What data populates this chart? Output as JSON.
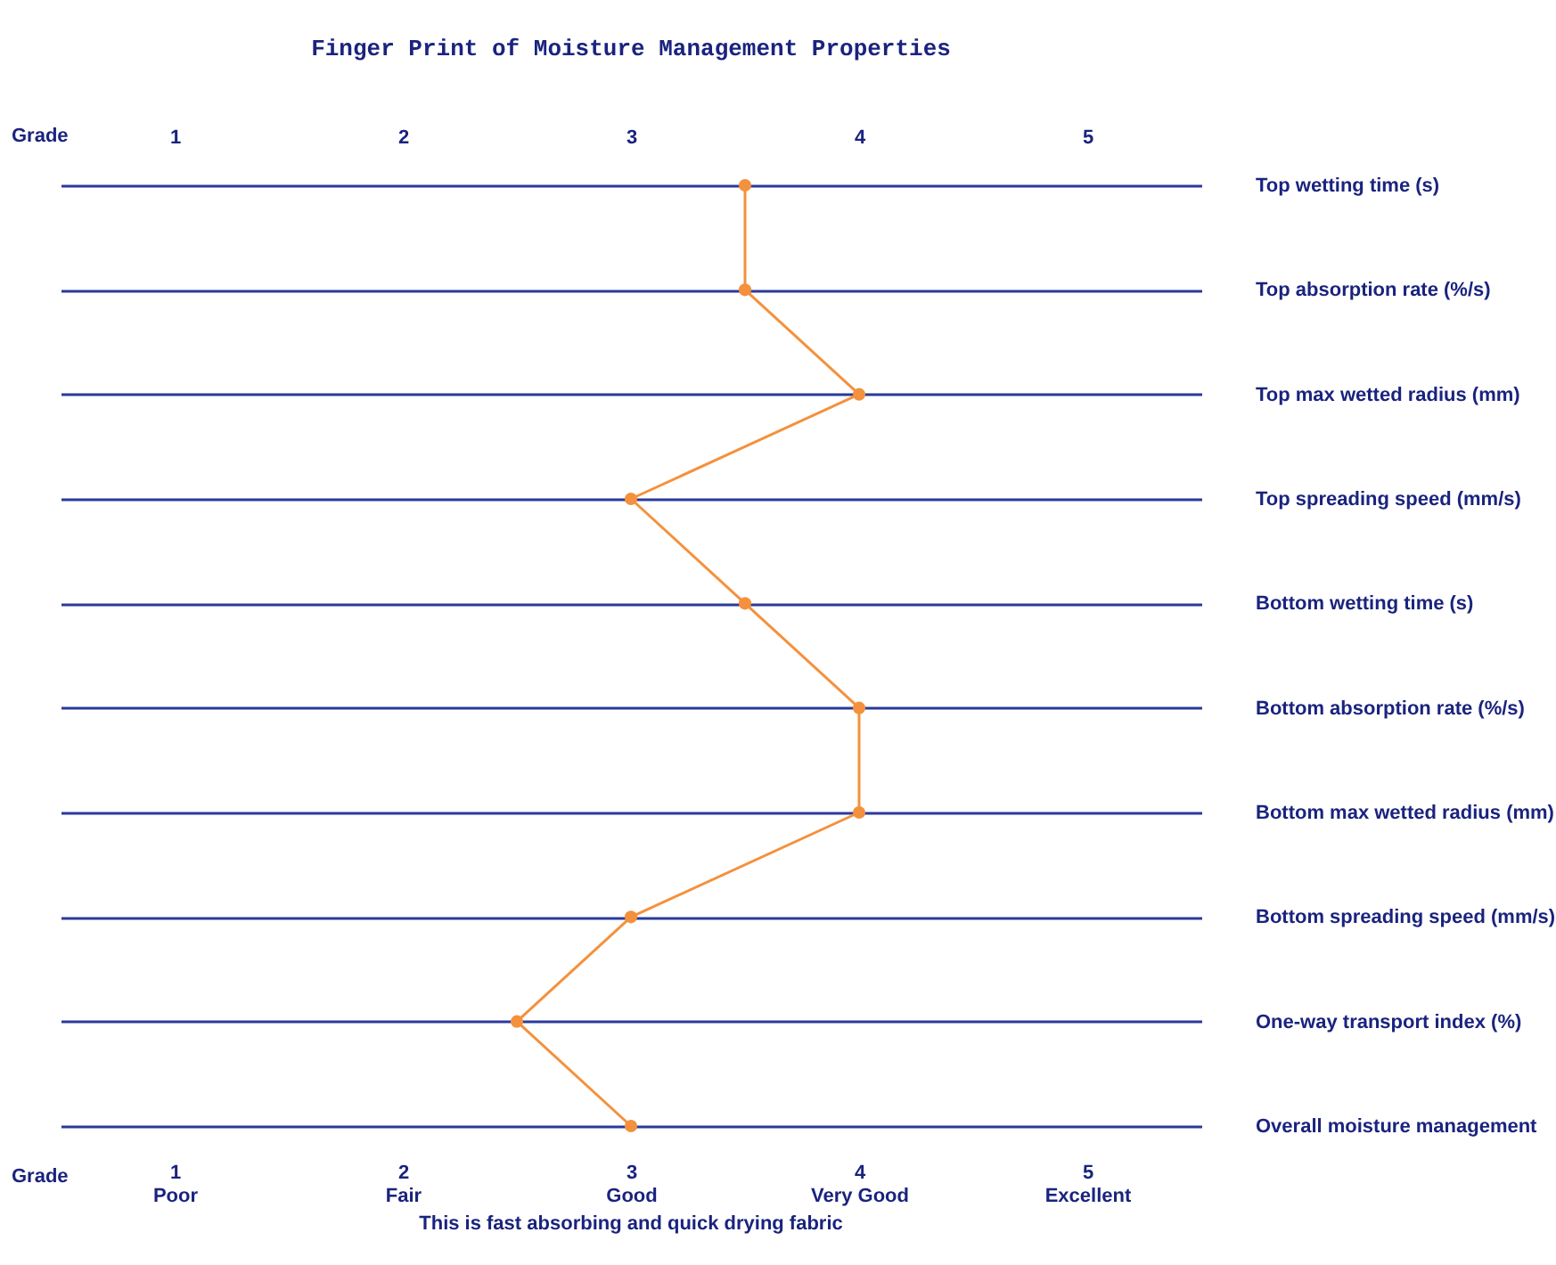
{
  "chart_data": {
    "type": "line",
    "orientation": "horizontal",
    "title": "Finger Print of Moisture Management Properties",
    "categories": [
      "Top wetting time (s)",
      "Top absorption rate (%/s)",
      "Top max wetted radius (mm)",
      "Top spreading speed (mm/s)",
      "Bottom wetting time (s)",
      "Bottom absorption rate (%/s)",
      "Bottom max wetted radius (mm)",
      "Bottom spreading speed (mm/s)",
      "One-way transport index (%)",
      "Overall moisture management"
    ],
    "series": [
      {
        "color": "#f4913c",
        "values": [
          3.5,
          3.5,
          4,
          3,
          3.5,
          4,
          4,
          3,
          2.5,
          3
        ]
      }
    ],
    "xlabel": "Grade",
    "x2label": "Grade",
    "xlim": [
      0.5,
      5.5
    ],
    "xticks": [
      {
        "value": 1,
        "label": "1\nPoor"
      },
      {
        "value": 2,
        "label": "2\nFair"
      },
      {
        "value": 3,
        "label": "3\nGood"
      },
      {
        "value": 4,
        "label": "4\nVery Good"
      },
      {
        "value": 5,
        "label": "5\nExcellent"
      }
    ],
    "x2lim": [
      0.5,
      5.5
    ],
    "x2ticks": [
      1,
      2,
      3,
      4,
      5
    ],
    "grid": "y",
    "marker": "circle",
    "line_style": "solid",
    "annotations": [
      "This is fast absorbing and quick drying fabric"
    ]
  }
}
